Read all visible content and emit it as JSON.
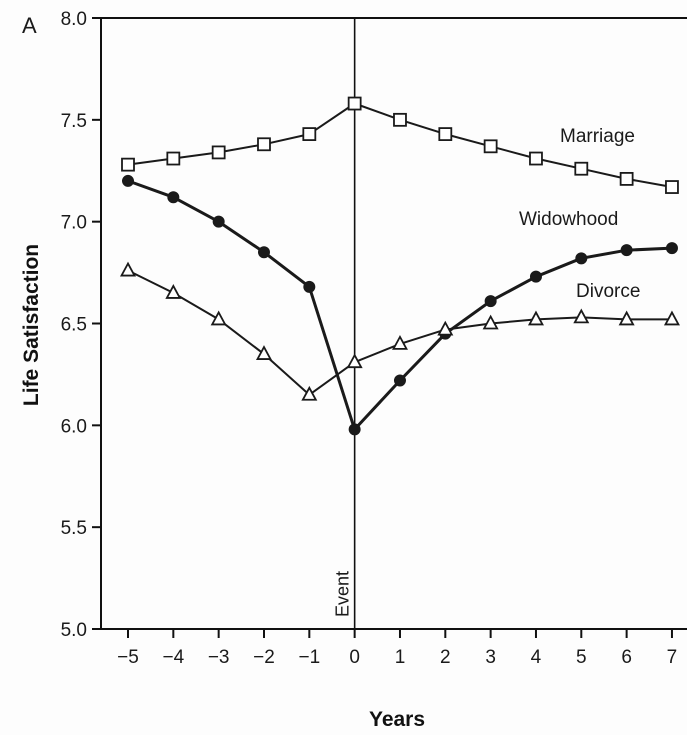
{
  "panel_label": "A",
  "chart_data": {
    "type": "line",
    "title": "",
    "xlabel": "Years",
    "ylabel": "Life Satisfaction",
    "x": [
      -5,
      -4,
      -3,
      -2,
      -1,
      0,
      1,
      2,
      3,
      4,
      5,
      6,
      7
    ],
    "x_tick_labels": [
      "−5",
      "−4",
      "−3",
      "−2",
      "−1",
      "0",
      "1",
      "2",
      "3",
      "4",
      "5",
      "6",
      "7"
    ],
    "xlim": [
      -5.5,
      7.3
    ],
    "ylim": [
      5.0,
      8.0
    ],
    "y_ticks": [
      "5.0",
      "5.5",
      "6.0",
      "6.5",
      "7.0",
      "7.5",
      "8.0"
    ],
    "grid": false,
    "event_line": {
      "x": 0,
      "label": "Event"
    },
    "series": [
      {
        "name": "Marriage",
        "marker": "open-square",
        "values": [
          7.28,
          7.31,
          7.34,
          7.38,
          7.43,
          7.58,
          7.5,
          7.43,
          7.37,
          7.31,
          7.26,
          7.21,
          7.17
        ]
      },
      {
        "name": "Widowhood",
        "marker": "filled-circle",
        "values": [
          7.2,
          7.12,
          7.0,
          6.85,
          6.68,
          5.98,
          6.22,
          6.45,
          6.61,
          6.73,
          6.82,
          6.86,
          6.87
        ]
      },
      {
        "name": "Divorce",
        "marker": "open-triangle",
        "values": [
          6.76,
          6.65,
          6.52,
          6.35,
          6.15,
          6.31,
          6.4,
          6.47,
          6.5,
          6.52,
          6.53,
          6.52,
          6.52
        ]
      }
    ]
  }
}
